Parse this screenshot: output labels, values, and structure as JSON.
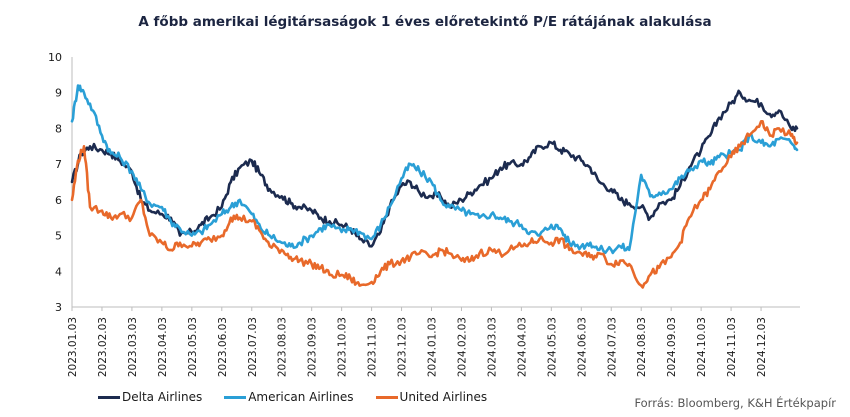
{
  "title": "A főbb amerikai légitársaságok 1 éves előretekintő P/E rátájának alakulása",
  "source": "Forrás: Bloomberg,  K&H Értékpapír",
  "chart_data": {
    "type": "line",
    "title": "A főbb amerikai légitársaságok 1 éves előretekintő P/E rátájának alakulása",
    "xlabel": "",
    "ylabel": "",
    "ylim": [
      3,
      10
    ],
    "yticks": [
      "3",
      "4",
      "5",
      "6",
      "7",
      "8",
      "9",
      "10"
    ],
    "grid": false,
    "legend_position": "bottom-left",
    "x": [
      "2023.01.03",
      "2023.02.03",
      "2023.03.03",
      "2023.04.03",
      "2023.05.03",
      "2023.06.03",
      "2023.07.03",
      "2023.08.03",
      "2023.09.03",
      "2023.10.03",
      "2023.11.03",
      "2023.12.03",
      "2024.01.03",
      "2024.02.03",
      "2024.03.03",
      "2024.04.03",
      "2024.05.03",
      "2024.06.03",
      "2024.07.03",
      "2024.08.03",
      "2024.09.03",
      "2024.10.03",
      "2024.11.03",
      "2024.12.03"
    ],
    "series": [
      {
        "name": "Delta Airlines",
        "color": "#1c2b4f",
        "points": [
          [
            0,
            6.5
          ],
          [
            0.3,
            7.3
          ],
          [
            0.6,
            7.5
          ],
          [
            1,
            7.4
          ],
          [
            1.3,
            7.3
          ],
          [
            1.6,
            7.1
          ],
          [
            2,
            6.8
          ],
          [
            2.3,
            6.0
          ],
          [
            2.6,
            5.7
          ],
          [
            3,
            5.6
          ],
          [
            3.3,
            5.5
          ],
          [
            3.6,
            5.0
          ],
          [
            4,
            5.1
          ],
          [
            4.3,
            5.3
          ],
          [
            4.6,
            5.5
          ],
          [
            5,
            5.8
          ],
          [
            5.3,
            6.5
          ],
          [
            5.6,
            6.9
          ],
          [
            6,
            7.1
          ],
          [
            6.3,
            6.7
          ],
          [
            6.6,
            6.3
          ],
          [
            7,
            6.1
          ],
          [
            7.3,
            5.9
          ],
          [
            7.6,
            5.8
          ],
          [
            8,
            5.7
          ],
          [
            8.3,
            5.5
          ],
          [
            8.6,
            5.4
          ],
          [
            9,
            5.3
          ],
          [
            9.3,
            5.2
          ],
          [
            9.6,
            4.9
          ],
          [
            10,
            4.7
          ],
          [
            10.3,
            5.1
          ],
          [
            10.6,
            5.8
          ],
          [
            11,
            6.4
          ],
          [
            11.3,
            6.5
          ],
          [
            11.6,
            6.2
          ],
          [
            12,
            6.1
          ],
          [
            12.3,
            6.1
          ],
          [
            12.6,
            5.8
          ],
          [
            13,
            6.0
          ],
          [
            13.3,
            6.2
          ],
          [
            13.6,
            6.4
          ],
          [
            14,
            6.6
          ],
          [
            14.3,
            6.9
          ],
          [
            14.6,
            7.0
          ],
          [
            15,
            7.0
          ],
          [
            15.3,
            7.2
          ],
          [
            15.6,
            7.5
          ],
          [
            16,
            7.6
          ],
          [
            16.3,
            7.4
          ],
          [
            16.6,
            7.3
          ],
          [
            17,
            7.1
          ],
          [
            17.3,
            6.9
          ],
          [
            17.6,
            6.5
          ],
          [
            18,
            6.3
          ],
          [
            18.3,
            6.0
          ],
          [
            18.6,
            5.9
          ],
          [
            19,
            5.8
          ],
          [
            19.3,
            5.5
          ],
          [
            19.6,
            5.9
          ],
          [
            20,
            6.0
          ],
          [
            20.3,
            6.4
          ],
          [
            20.6,
            6.9
          ],
          [
            21,
            7.4
          ],
          [
            21.3,
            7.8
          ],
          [
            21.6,
            8.3
          ],
          [
            22,
            8.7
          ],
          [
            22.3,
            9.0
          ],
          [
            22.6,
            8.8
          ],
          [
            23,
            8.7
          ],
          [
            23.3,
            8.4
          ],
          [
            23.6,
            8.5
          ],
          [
            24,
            8.0
          ],
          [
            24.2,
            8.0
          ]
        ]
      },
      {
        "name": "American Airlines",
        "color": "#2a9fd6",
        "points": [
          [
            0,
            8.2
          ],
          [
            0.2,
            9.2
          ],
          [
            0.4,
            9.0
          ],
          [
            0.7,
            8.5
          ],
          [
            1,
            7.8
          ],
          [
            1.3,
            7.3
          ],
          [
            1.6,
            7.2
          ],
          [
            2,
            6.8
          ],
          [
            2.3,
            6.3
          ],
          [
            2.6,
            5.9
          ],
          [
            3,
            5.8
          ],
          [
            3.3,
            5.4
          ],
          [
            3.6,
            5.2
          ],
          [
            4,
            5.0
          ],
          [
            4.3,
            5.1
          ],
          [
            4.6,
            5.3
          ],
          [
            5,
            5.6
          ],
          [
            5.3,
            5.8
          ],
          [
            5.6,
            6.0
          ],
          [
            6,
            5.6
          ],
          [
            6.3,
            5.2
          ],
          [
            6.6,
            5.0
          ],
          [
            7,
            4.8
          ],
          [
            7.3,
            4.7
          ],
          [
            7.6,
            4.8
          ],
          [
            8,
            5.0
          ],
          [
            8.3,
            5.2
          ],
          [
            8.6,
            5.3
          ],
          [
            9,
            5.1
          ],
          [
            9.3,
            5.2
          ],
          [
            9.6,
            5.1
          ],
          [
            10,
            4.9
          ],
          [
            10.3,
            5.3
          ],
          [
            10.6,
            5.8
          ],
          [
            11,
            6.6
          ],
          [
            11.3,
            7.0
          ],
          [
            11.6,
            6.8
          ],
          [
            12,
            6.5
          ],
          [
            12.3,
            6.0
          ],
          [
            12.6,
            5.8
          ],
          [
            13,
            5.7
          ],
          [
            13.3,
            5.6
          ],
          [
            13.6,
            5.5
          ],
          [
            14,
            5.6
          ],
          [
            14.3,
            5.5
          ],
          [
            14.6,
            5.4
          ],
          [
            15,
            5.3
          ],
          [
            15.3,
            5.1
          ],
          [
            15.6,
            5.0
          ],
          [
            16,
            5.3
          ],
          [
            16.3,
            5.2
          ],
          [
            16.6,
            4.8
          ],
          [
            17,
            4.7
          ],
          [
            17.3,
            4.8
          ],
          [
            17.6,
            4.6
          ],
          [
            18,
            4.6
          ],
          [
            18.3,
            4.7
          ],
          [
            18.6,
            4.6
          ],
          [
            19,
            6.7
          ],
          [
            19.3,
            6.1
          ],
          [
            19.6,
            6.2
          ],
          [
            20,
            6.3
          ],
          [
            20.3,
            6.6
          ],
          [
            20.6,
            6.8
          ],
          [
            21,
            7.1
          ],
          [
            21.3,
            7.0
          ],
          [
            21.6,
            7.2
          ],
          [
            22,
            7.3
          ],
          [
            22.3,
            7.4
          ],
          [
            22.6,
            7.8
          ],
          [
            23,
            7.6
          ],
          [
            23.3,
            7.5
          ],
          [
            23.6,
            7.7
          ],
          [
            24,
            7.6
          ],
          [
            24.2,
            7.4
          ]
        ]
      },
      {
        "name": "United Airlines",
        "color": "#e8692a",
        "points": [
          [
            0,
            6.0
          ],
          [
            0.2,
            7.1
          ],
          [
            0.4,
            7.5
          ],
          [
            0.6,
            5.8
          ],
          [
            1,
            5.7
          ],
          [
            1.3,
            5.5
          ],
          [
            1.6,
            5.6
          ],
          [
            2,
            5.5
          ],
          [
            2.3,
            6.0
          ],
          [
            2.6,
            5.0
          ],
          [
            3,
            4.8
          ],
          [
            3.3,
            4.6
          ],
          [
            3.6,
            4.8
          ],
          [
            4,
            4.7
          ],
          [
            4.3,
            4.8
          ],
          [
            4.6,
            4.9
          ],
          [
            5,
            5.0
          ],
          [
            5.3,
            5.5
          ],
          [
            5.6,
            5.5
          ],
          [
            6,
            5.4
          ],
          [
            6.3,
            5.1
          ],
          [
            6.6,
            4.7
          ],
          [
            7,
            4.6
          ],
          [
            7.3,
            4.4
          ],
          [
            7.6,
            4.3
          ],
          [
            8,
            4.2
          ],
          [
            8.3,
            4.1
          ],
          [
            8.6,
            3.9
          ],
          [
            9,
            3.9
          ],
          [
            9.3,
            3.8
          ],
          [
            9.6,
            3.6
          ],
          [
            10,
            3.7
          ],
          [
            10.3,
            4.0
          ],
          [
            10.6,
            4.2
          ],
          [
            11,
            4.3
          ],
          [
            11.3,
            4.4
          ],
          [
            11.6,
            4.5
          ],
          [
            12,
            4.4
          ],
          [
            12.3,
            4.6
          ],
          [
            12.6,
            4.5
          ],
          [
            13,
            4.3
          ],
          [
            13.3,
            4.3
          ],
          [
            13.6,
            4.5
          ],
          [
            14,
            4.6
          ],
          [
            14.3,
            4.5
          ],
          [
            14.6,
            4.6
          ],
          [
            15,
            4.7
          ],
          [
            15.3,
            4.8
          ],
          [
            15.6,
            4.9
          ],
          [
            16,
            4.8
          ],
          [
            16.3,
            4.9
          ],
          [
            16.6,
            4.6
          ],
          [
            17,
            4.5
          ],
          [
            17.3,
            4.4
          ],
          [
            17.6,
            4.5
          ],
          [
            18,
            4.2
          ],
          [
            18.3,
            4.3
          ],
          [
            18.6,
            4.2
          ],
          [
            19,
            3.6
          ],
          [
            19.3,
            3.9
          ],
          [
            19.6,
            4.1
          ],
          [
            20,
            4.4
          ],
          [
            20.3,
            4.8
          ],
          [
            20.6,
            5.5
          ],
          [
            21,
            6.0
          ],
          [
            21.3,
            6.3
          ],
          [
            21.6,
            6.8
          ],
          [
            22,
            7.2
          ],
          [
            22.3,
            7.5
          ],
          [
            22.6,
            7.8
          ],
          [
            23,
            8.2
          ],
          [
            23.3,
            7.8
          ],
          [
            23.6,
            8.0
          ],
          [
            24,
            7.8
          ],
          [
            24.2,
            7.6
          ]
        ]
      }
    ]
  }
}
